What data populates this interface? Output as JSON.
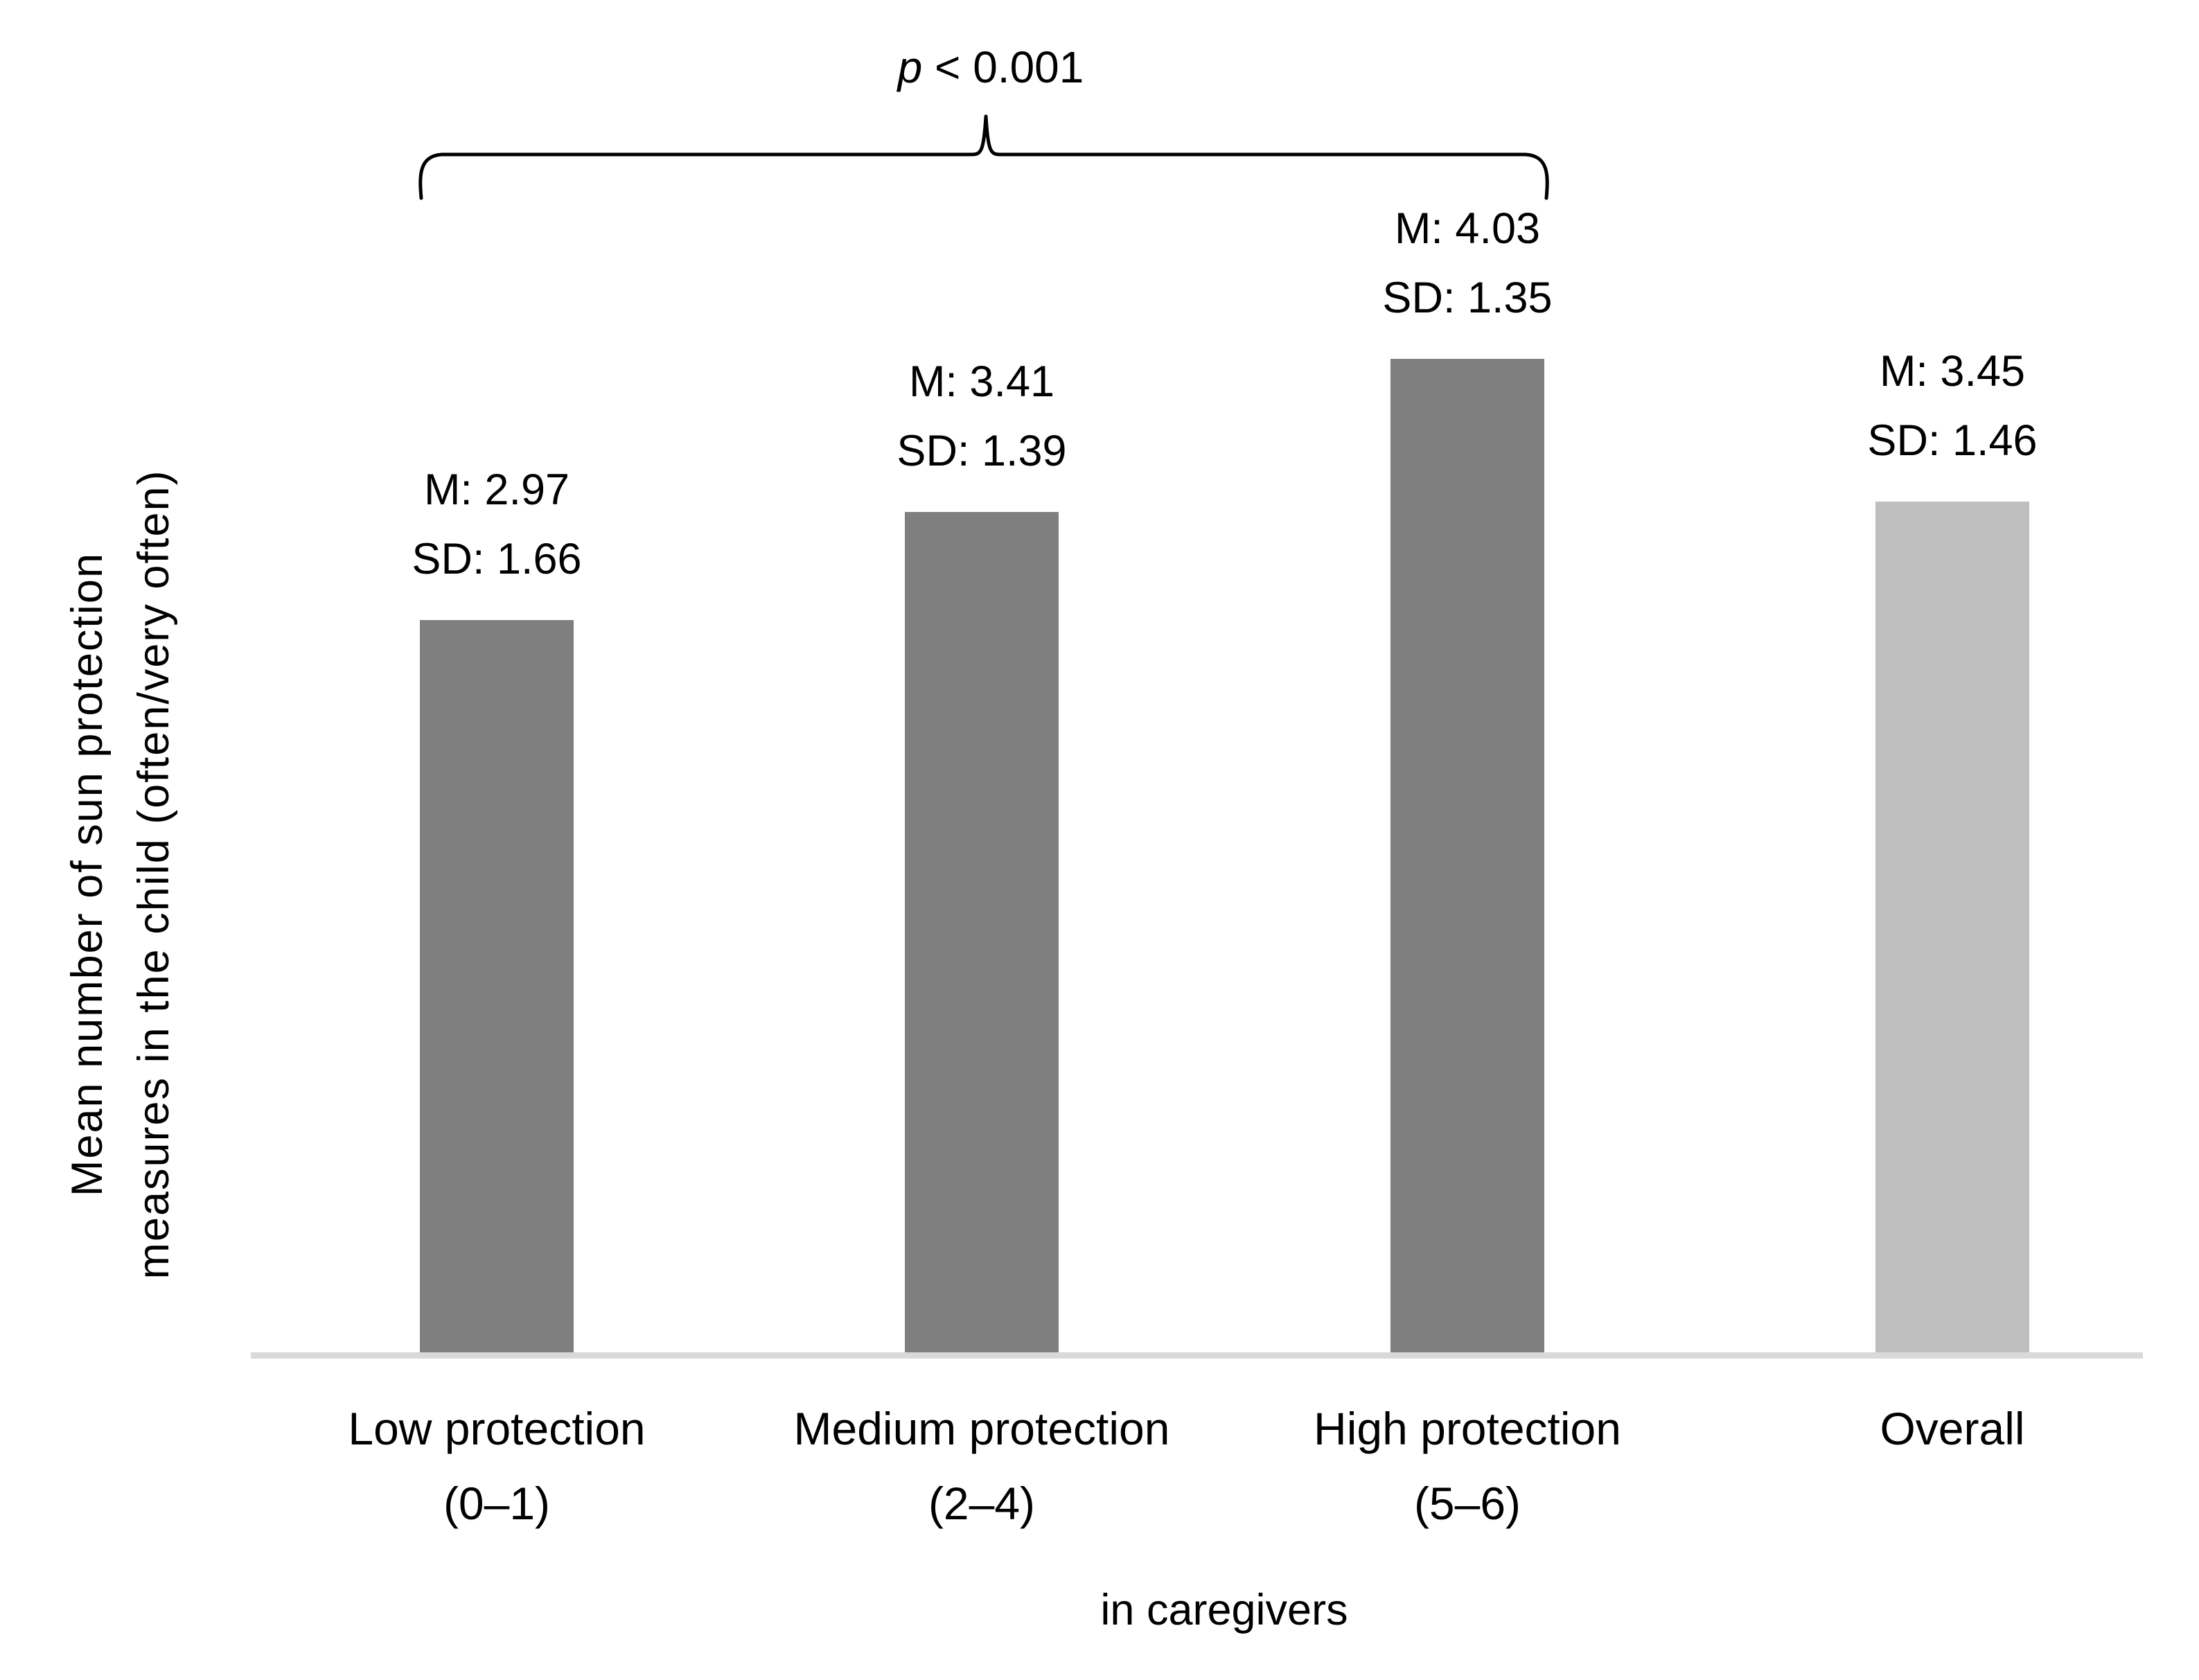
{
  "chart_data": {
    "type": "bar",
    "categories": [
      "Low protection (0–1)",
      "Medium protection (2–4)",
      "High protection (5–6)",
      "Overall"
    ],
    "series": [
      {
        "name": "M",
        "values": [
          2.97,
          3.41,
          4.03,
          3.45
        ]
      },
      {
        "name": "SD",
        "values": [
          1.66,
          1.39,
          1.35,
          1.46
        ]
      }
    ],
    "title": "",
    "xlabel": "in caregivers",
    "ylabel": "Mean number of sun protection measures in the child (often/very often)",
    "value_axis_visible": false,
    "grid": false,
    "legend": false,
    "annotation": {
      "label": "p < 0.001",
      "span_from": "Low protection (0–1)",
      "span_to": "High protection (5–6)"
    },
    "bar_colors": {
      "group": "#7f7f7f",
      "overall": "#bfbfbf"
    },
    "axis_line_color": "#d9d9d9",
    "text_color": "#000000"
  },
  "labels": {
    "p_var": "p",
    "p_rest": " < 0.001",
    "y_axis_line1": "Mean number of sun protection",
    "y_axis_line2": "measures in the child (often/very often)",
    "x_axis_title": "in caregivers",
    "bars": [
      {
        "m": "M: 2.97",
        "sd": "SD: 1.66",
        "cat_line1": "Low protection",
        "cat_line2": "(0–1)"
      },
      {
        "m": "M: 3.41",
        "sd": "SD: 1.39",
        "cat_line1": "Medium protection",
        "cat_line2": "(2–4)"
      },
      {
        "m": "M: 4.03",
        "sd": "SD: 1.35",
        "cat_line1": "High protection",
        "cat_line2": "(5–6)"
      },
      {
        "m": "M: 3.45",
        "sd": "SD: 1.46",
        "cat_line1": "Overall",
        "cat_line2": ""
      }
    ]
  }
}
